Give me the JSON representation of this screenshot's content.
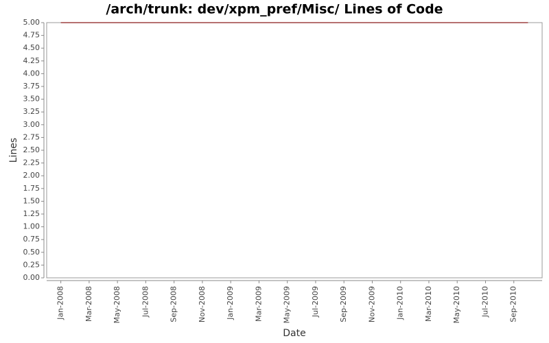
{
  "chart_data": {
    "type": "line",
    "title": "/arch/trunk: dev/xpm_pref/Misc/ Lines of Code",
    "x_label": "Date",
    "y_label": "Lines",
    "x": [
      "2008-01",
      "2010-10"
    ],
    "series": [
      {
        "name": "Lines",
        "color": "#8b1a1a",
        "values": [
          5,
          5
        ]
      }
    ],
    "xlim": [
      "2007-12",
      "2010-11"
    ],
    "xticks": [
      {
        "value": "2008-01",
        "label": "Jan-2008"
      },
      {
        "value": "2008-03",
        "label": "Mar-2008"
      },
      {
        "value": "2008-05",
        "label": "May-2008"
      },
      {
        "value": "2008-07",
        "label": "Jul-2008"
      },
      {
        "value": "2008-09",
        "label": "Sep-2008"
      },
      {
        "value": "2008-11",
        "label": "Nov-2008"
      },
      {
        "value": "2009-01",
        "label": "Jan-2009"
      },
      {
        "value": "2009-03",
        "label": "Mar-2009"
      },
      {
        "value": "2009-05",
        "label": "May-2009"
      },
      {
        "value": "2009-07",
        "label": "Jul-2009"
      },
      {
        "value": "2009-09",
        "label": "Sep-2009"
      },
      {
        "value": "2009-11",
        "label": "Nov-2009"
      },
      {
        "value": "2010-01",
        "label": "Jan-2010"
      },
      {
        "value": "2010-03",
        "label": "Mar-2010"
      },
      {
        "value": "2010-05",
        "label": "May-2010"
      },
      {
        "value": "2010-07",
        "label": "Jul-2010"
      },
      {
        "value": "2010-09",
        "label": "Sep-2010"
      }
    ],
    "ylim": [
      0,
      5
    ],
    "yticks": [
      {
        "value": 0,
        "label": "0.00"
      },
      {
        "value": 0.25,
        "label": "0.25"
      },
      {
        "value": 0.5,
        "label": "0.50"
      },
      {
        "value": 0.75,
        "label": "0.75"
      },
      {
        "value": 1,
        "label": "1.00"
      },
      {
        "value": 1.25,
        "label": "1.25"
      },
      {
        "value": 1.5,
        "label": "1.50"
      },
      {
        "value": 1.75,
        "label": "1.75"
      },
      {
        "value": 2,
        "label": "2.00"
      },
      {
        "value": 2.25,
        "label": "2.25"
      },
      {
        "value": 2.5,
        "label": "2.50"
      },
      {
        "value": 2.75,
        "label": "2.75"
      },
      {
        "value": 3,
        "label": "3.00"
      },
      {
        "value": 3.25,
        "label": "3.25"
      },
      {
        "value": 3.5,
        "label": "3.50"
      },
      {
        "value": 3.75,
        "label": "3.75"
      },
      {
        "value": 4,
        "label": "4.00"
      },
      {
        "value": 4.25,
        "label": "4.25"
      },
      {
        "value": 4.5,
        "label": "4.50"
      },
      {
        "value": 4.75,
        "label": "4.75"
      },
      {
        "value": 5,
        "label": "5.00"
      }
    ],
    "grid": false
  }
}
